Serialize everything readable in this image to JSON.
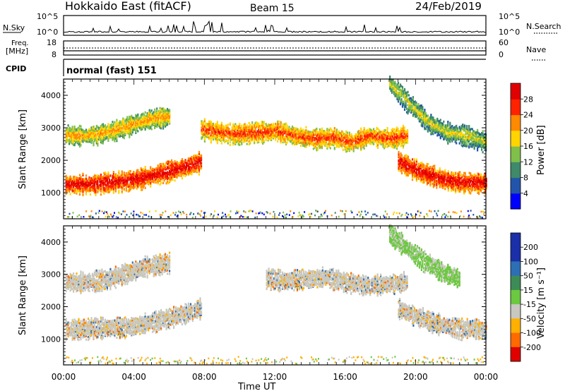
{
  "header": {
    "station": "Hokkaido East (fitACF)",
    "beam": "Beam 15",
    "date": "24/Feb/2019"
  },
  "top_panel": {
    "nsky_label": "N.Sky",
    "nsky_ticks": [
      "10^5",
      "10^0"
    ],
    "nsearch_label": "N.Search",
    "nsearch_ticks": [
      "10^5",
      "10^0"
    ],
    "freq_label_line1": "Freq.",
    "freq_label_line2": "[MHz]",
    "freq_ticks": [
      "18",
      "8"
    ],
    "nave_label": "Nave",
    "nave_ticks": [
      "60",
      "0"
    ],
    "cpid_label": "CPID",
    "cpid_text": "normal (fast) 151"
  },
  "axes": {
    "ylabel": "Slant Range [km]",
    "xlabel": "Time UT",
    "yticks": [
      "1000",
      "2000",
      "3000",
      "4000"
    ],
    "xticks": [
      "00:00",
      "04:00",
      "08:00",
      "12:00",
      "16:00",
      "20:00",
      "00:00"
    ]
  },
  "colorbars": {
    "power": {
      "label": "Power [dB]",
      "ticks": [
        "4",
        "8",
        "12",
        "16",
        "20",
        "24",
        "28"
      ],
      "colors": [
        "#0000ff",
        "#2255aa",
        "#3e8a6a",
        "#7fbf4a",
        "#ffd400",
        "#ff8a00",
        "#ff2200",
        "#e00000"
      ]
    },
    "velocity": {
      "label": "Velocity [m s⁻¹]",
      "ticks": [
        "200",
        "100",
        "50",
        "15",
        "-15",
        "-50",
        "-100",
        "-200"
      ],
      "colors": [
        "#1a2fa8",
        "#2d6fb5",
        "#3d8c57",
        "#6cc840",
        "#c8c8c0",
        "#ffb000",
        "#ff6a00",
        "#e00000"
      ]
    }
  },
  "chart_data": [
    {
      "type": "heatmap",
      "title": "Power [dB]",
      "xlabel": "Time UT",
      "ylabel": "Slant Range [km]",
      "xlim": [
        0,
        24
      ],
      "ylim": [
        200,
        4500
      ],
      "scale": [
        0,
        32
      ],
      "x": [
        0,
        1,
        2,
        3,
        4,
        5,
        6,
        7,
        8,
        9,
        10,
        11,
        12,
        13,
        14,
        15,
        16,
        17,
        18,
        19,
        20,
        21,
        22,
        23,
        24
      ],
      "bands": [
        {
          "name": "lower echo",
          "x_range": [
            0.1,
            7.8
          ],
          "center_km": [
            1300,
            1300,
            1350,
            1400,
            1500,
            1650,
            1800,
            2000
          ],
          "value_db": 28
        },
        {
          "name": "lower echo (evening)",
          "x_range": [
            19,
            24
          ],
          "center_km": [
            2000,
            1750,
            1550,
            1400,
            1350,
            1350
          ],
          "value_db": 28
        },
        {
          "name": "upper echo",
          "x_range": [
            0.1,
            6
          ],
          "center_km": [
            2800,
            2800,
            2900,
            3100,
            3300,
            3400
          ],
          "value_db": 20
        },
        {
          "name": "upper echo (day)",
          "x_range": [
            7.8,
            19.5
          ],
          "center_km": [
            3000,
            2900,
            2850,
            2900,
            2950,
            2800,
            2700,
            2750,
            2600,
            2800,
            2700,
            2800
          ],
          "value_db": 24
        },
        {
          "name": "high-range echo",
          "x_range": [
            18.5,
            24
          ],
          "center_km": [
            4400,
            3800,
            3200,
            2900,
            2800,
            2600
          ],
          "value_db": 16
        }
      ]
    },
    {
      "type": "heatmap",
      "title": "Velocity [m s⁻¹]",
      "xlabel": "Time UT",
      "ylabel": "Slant Range [km]",
      "xlim": [
        0,
        24
      ],
      "ylim": [
        200,
        4500
      ],
      "scale": [
        -250,
        250
      ],
      "bands": [
        {
          "name": "lower echo",
          "x_range": [
            0.1,
            7.8
          ],
          "center_km": [
            1350,
            1350,
            1400,
            1400,
            1500,
            1650,
            1800,
            2000
          ],
          "value": 0
        },
        {
          "name": "lower echo (evening)",
          "x_range": [
            19,
            24
          ],
          "center_km": [
            2000,
            1750,
            1550,
            1400,
            1350,
            1350
          ],
          "value": 0
        },
        {
          "name": "upper echo",
          "x_range": [
            0.1,
            6
          ],
          "center_km": [
            2800,
            2800,
            2900,
            3100,
            3300,
            3400
          ],
          "value": 0
        },
        {
          "name": "upper echo (day)",
          "x_range": [
            11.5,
            19.5
          ],
          "center_km": [
            2900,
            2850,
            2900,
            2950,
            2800,
            2700,
            2750,
            2800
          ],
          "value": 0
        },
        {
          "name": "high-range echo",
          "x_range": [
            18.5,
            22.5
          ],
          "center_km": [
            4300,
            3700,
            3200,
            2900
          ],
          "value": 40
        }
      ]
    }
  ]
}
